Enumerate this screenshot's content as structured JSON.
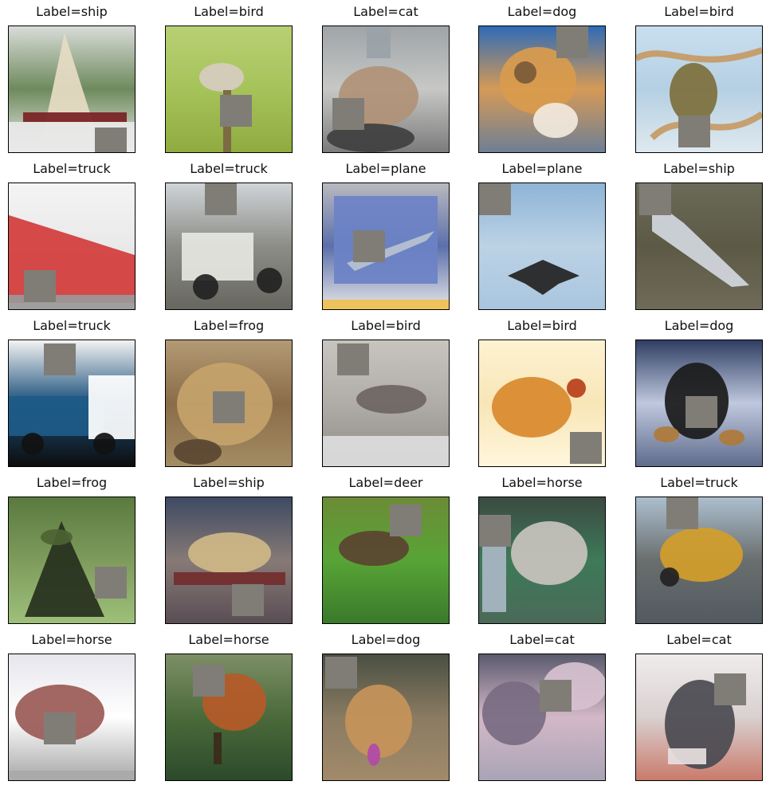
{
  "figure": {
    "patch_color": "#807d77",
    "items": [
      {
        "label": "Label=ship",
        "subject": "sailboat"
      },
      {
        "label": "Label=bird",
        "subject": "bird-on-branch"
      },
      {
        "label": "Label=cat",
        "subject": "cat"
      },
      {
        "label": "Label=dog",
        "subject": "dog"
      },
      {
        "label": "Label=bird",
        "subject": "bird-in-tree"
      },
      {
        "label": "Label=truck",
        "subject": "red-truck"
      },
      {
        "label": "Label=truck",
        "subject": "white-truck"
      },
      {
        "label": "Label=plane",
        "subject": "plane-on-screen"
      },
      {
        "label": "Label=plane",
        "subject": "plane-in-sky"
      },
      {
        "label": "Label=ship",
        "subject": "ship-hull"
      },
      {
        "label": "Label=truck",
        "subject": "blue-truck"
      },
      {
        "label": "Label=frog",
        "subject": "frog"
      },
      {
        "label": "Label=bird",
        "subject": "sparrow"
      },
      {
        "label": "Label=bird",
        "subject": "chicken"
      },
      {
        "label": "Label=dog",
        "subject": "black-dog"
      },
      {
        "label": "Label=frog",
        "subject": "frog-green"
      },
      {
        "label": "Label=ship",
        "subject": "boat-on-water"
      },
      {
        "label": "Label=deer",
        "subject": "deer"
      },
      {
        "label": "Label=horse",
        "subject": "white-horse"
      },
      {
        "label": "Label=truck",
        "subject": "yellow-loader"
      },
      {
        "label": "Label=horse",
        "subject": "brown-horse"
      },
      {
        "label": "Label=horse",
        "subject": "red-horse"
      },
      {
        "label": "Label=dog",
        "subject": "small-dog"
      },
      {
        "label": "Label=cat",
        "subject": "grey-cat"
      },
      {
        "label": "Label=cat",
        "subject": "dark-cat"
      }
    ]
  }
}
